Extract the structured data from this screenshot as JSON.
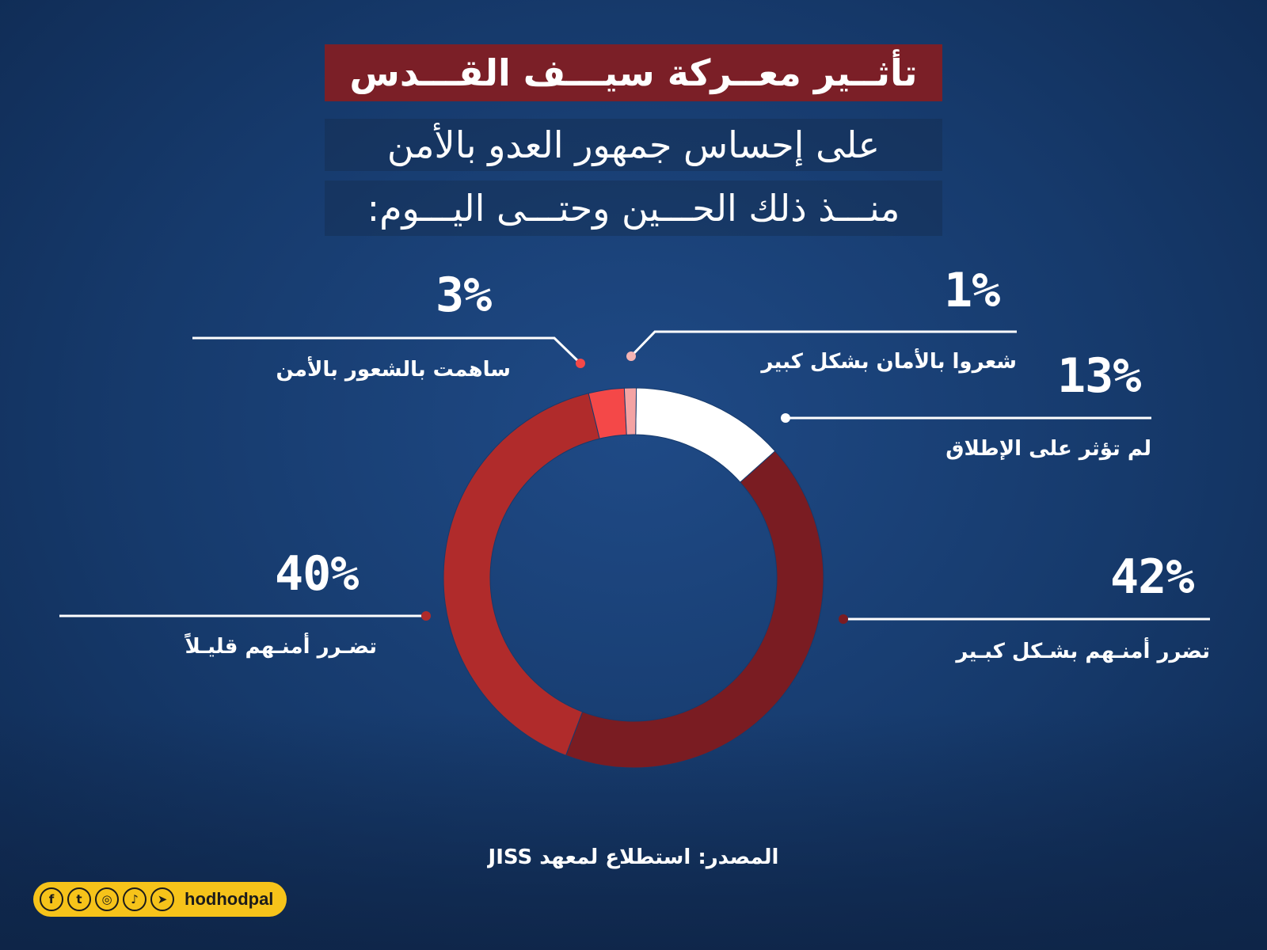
{
  "header": {
    "title": "تأثــير معــركة سيـــف القـــدس",
    "subtitle_line1": "على إحساس جمهور العدو بالأمن",
    "subtitle_line2": "منـــذ ذلك الحـــين وحتـــى اليـــوم:"
  },
  "chart_data": {
    "type": "pie",
    "donut": true,
    "slices": [
      {
        "label": "لم تؤثر على الإطلاق",
        "value": 13,
        "value_label": "13%",
        "color": "#ffffff"
      },
      {
        "label": "تضرر أمنـهم بشـكل كبـير",
        "value": 42,
        "value_label": "42%",
        "color": "#7a1c22"
      },
      {
        "label": "تضـرر أمنـهم قليـلاً",
        "value": 40,
        "value_label": "40%",
        "color": "#b02b2b"
      },
      {
        "label": "ساهمت بالشعور بالأمن",
        "value": 3,
        "value_label": "3%",
        "color": "#f44848"
      },
      {
        "label": "شعروا بالأمان بشكل كبير",
        "value": 1,
        "value_label": "1%",
        "color": "#f4a3a3"
      }
    ],
    "legend": "none"
  },
  "source": "المصدر: استطلاع لمعهد JISS",
  "brand": {
    "handle": "hodhodpal",
    "icons": [
      "facebook-icon",
      "twitter-icon",
      "instagram-icon",
      "tiktok-icon",
      "telegram-icon"
    ]
  }
}
